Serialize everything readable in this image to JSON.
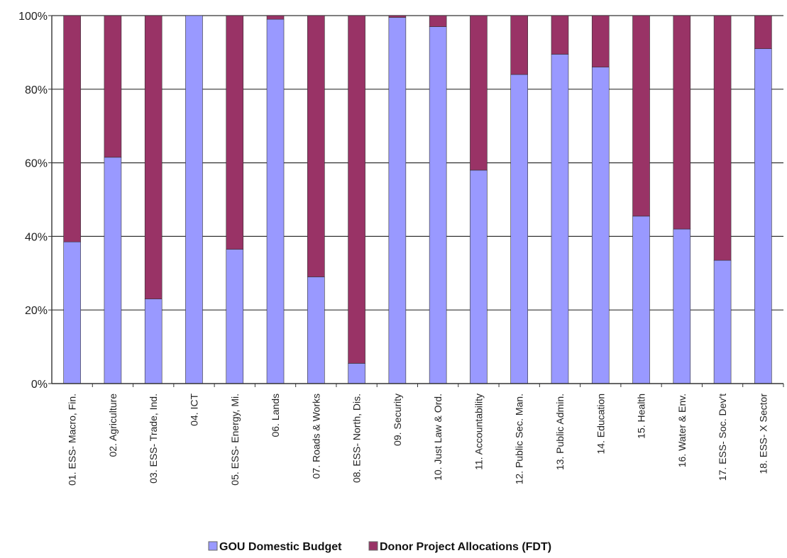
{
  "chart_data": {
    "type": "bar",
    "stacked": true,
    "percent": true,
    "categories": [
      "01. ESS- Macro, Fin.",
      "02. Agriculture",
      "03. ESS- Trade, Ind.",
      "04. ICT",
      "05. ESS- Energy, Mi.",
      "06. Lands",
      "07. Roads & Works",
      "08. ESS- North, Dis.",
      "09. Security",
      "10. Just Law & Ord.",
      "11. Accountability",
      "12. Public Sec. Man.",
      "13. Public Admin.",
      "14. Education",
      "15. Health",
      "16. Water & Env.",
      "17. ESS- Soc. Dev't",
      "18. ESS- X Sector"
    ],
    "series": [
      {
        "name": "GOU Domestic Budget",
        "color": "#9999ff",
        "values": [
          38.5,
          61.5,
          23,
          100,
          36.5,
          99,
          29,
          5.5,
          99.5,
          97,
          58,
          84,
          89.5,
          86,
          45.5,
          42,
          33.5,
          91
        ]
      },
      {
        "name": "Donor Project Allocations (FDT)",
        "color": "#993366",
        "values": [
          61.5,
          38.5,
          77,
          0,
          63.5,
          1,
          71,
          94.5,
          0.5,
          3,
          42,
          16,
          10.5,
          14,
          54.5,
          58,
          66.5,
          9
        ]
      }
    ],
    "y_ticks": [
      "0%",
      "20%",
      "40%",
      "60%",
      "80%",
      "100%"
    ],
    "ylim": [
      0,
      100
    ],
    "grid": true,
    "legend_position": "bottom"
  }
}
